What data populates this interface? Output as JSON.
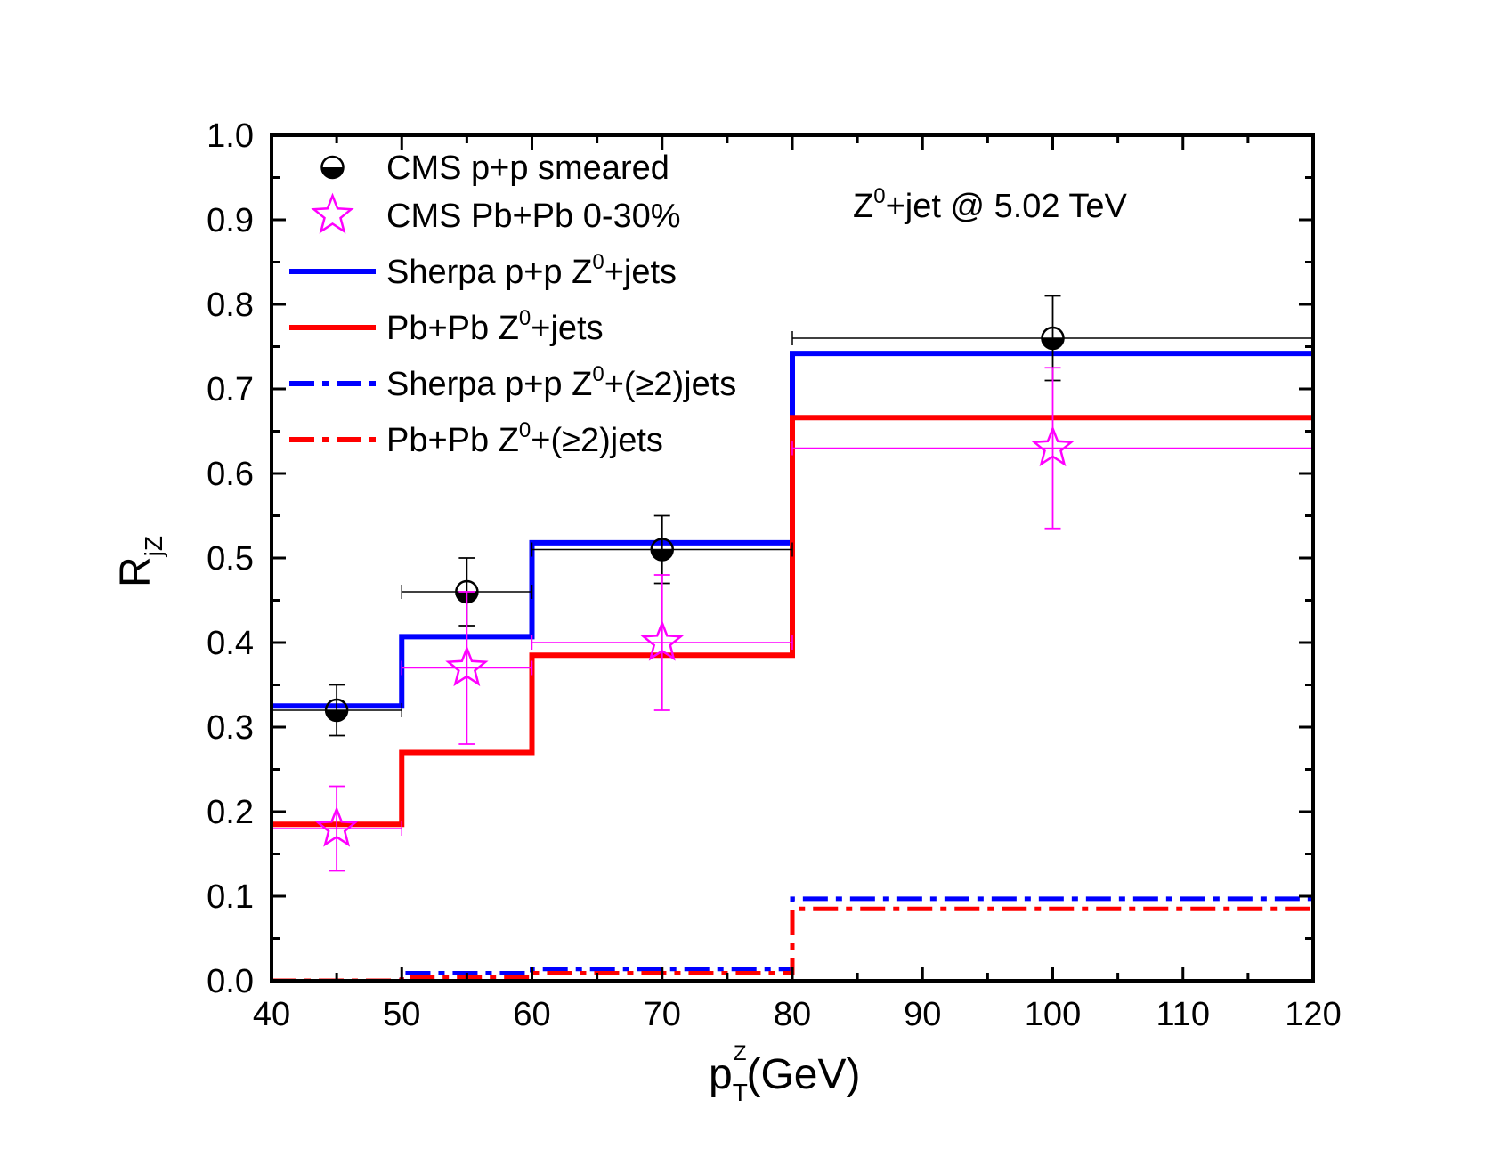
{
  "chart_data": {
    "type": "line",
    "xlim": [
      40,
      120
    ],
    "ylim": [
      0.0,
      1.0
    ],
    "xticks": [
      40,
      50,
      60,
      70,
      80,
      90,
      100,
      110,
      120
    ],
    "xtick_labels": [
      "40",
      "50",
      "60",
      "70",
      "80",
      "90",
      "100",
      "110",
      "120"
    ],
    "yticks": [
      0.0,
      0.1,
      0.2,
      0.3,
      0.4,
      0.5,
      0.6,
      0.7,
      0.8,
      0.9,
      1.0
    ],
    "ytick_labels": [
      "0.0",
      "0.1",
      "0.2",
      "0.3",
      "0.4",
      "0.5",
      "0.6",
      "0.7",
      "0.8",
      "0.9",
      "1.0"
    ],
    "xlabel": {
      "base": "p",
      "sub": "T",
      "sup": "Z",
      "suffix": "(GeV)"
    },
    "ylabel": {
      "base": "R",
      "sub": "jZ"
    },
    "annotation": {
      "prefix": "Z",
      "sup": "0",
      "suffix": "+jet @ 5.02 TeV"
    },
    "series": [
      {
        "name": "CMS p+p smeared",
        "kind": "points",
        "marker": "half-filled-circle",
        "color": "#000000",
        "points": [
          {
            "x": 45,
            "y": 0.32,
            "yerr": [
              0.29,
              0.35
            ],
            "xerr": [
              40,
              50
            ]
          },
          {
            "x": 55,
            "y": 0.46,
            "yerr": [
              0.42,
              0.5
            ],
            "xerr": [
              50,
              60
            ]
          },
          {
            "x": 70,
            "y": 0.51,
            "yerr": [
              0.47,
              0.55
            ],
            "xerr": [
              60,
              80
            ]
          },
          {
            "x": 100,
            "y": 0.76,
            "yerr": [
              0.71,
              0.81
            ],
            "xerr": [
              80,
              120
            ]
          }
        ]
      },
      {
        "name": "CMS Pb+Pb 0-30%",
        "kind": "points",
        "marker": "open-star",
        "color": "#ff00ff",
        "points": [
          {
            "x": 45,
            "y": 0.18,
            "yerr": [
              0.13,
              0.23
            ],
            "xerr": [
              40,
              50
            ]
          },
          {
            "x": 55,
            "y": 0.37,
            "yerr": [
              0.28,
              0.46
            ],
            "xerr": [
              50,
              60
            ]
          },
          {
            "x": 70,
            "y": 0.4,
            "yerr": [
              0.32,
              0.48
            ],
            "xerr": [
              60,
              80
            ]
          },
          {
            "x": 100,
            "y": 0.63,
            "yerr": [
              0.535,
              0.725
            ],
            "xerr": [
              80,
              120
            ]
          }
        ]
      },
      {
        "name": "Sherpa p+p Z0+jets",
        "kind": "step",
        "color": "#0000ff",
        "dash": "solid",
        "bins": [
          40,
          50,
          60,
          80,
          120
        ],
        "values": [
          0.325,
          0.407,
          0.518,
          0.742
        ]
      },
      {
        "name": "Pb+Pb Z0+jets",
        "kind": "step",
        "color": "#ff0000",
        "dash": "solid",
        "bins": [
          40,
          50,
          60,
          80,
          120
        ],
        "values": [
          0.185,
          0.27,
          0.385,
          0.666
        ]
      },
      {
        "name": "Sherpa p+p Z0+(>=2)jets",
        "kind": "step",
        "color": "#0000ff",
        "dash": "dashdot",
        "bins": [
          40,
          50,
          60,
          80,
          120
        ],
        "values": [
          0.0,
          0.009,
          0.014,
          0.097
        ]
      },
      {
        "name": "Pb+Pb Z0+(>=2)jets",
        "kind": "step",
        "color": "#ff0000",
        "dash": "dashdot",
        "bins": [
          40,
          50,
          60,
          80,
          120
        ],
        "values": [
          0.0,
          0.004,
          0.009,
          0.085
        ]
      }
    ],
    "legend": {
      "placement": "top-left",
      "entries": [
        {
          "series": 0,
          "parts": [
            {
              "t": "CMS p+p smeared"
            }
          ]
        },
        {
          "series": 1,
          "parts": [
            {
              "t": "CMS Pb+Pb 0-30%"
            }
          ]
        },
        {
          "series": 2,
          "parts": [
            {
              "t": "Sherpa  p+p  Z"
            },
            {
              "t": "0",
              "sup": true
            },
            {
              "t": "+jets"
            }
          ]
        },
        {
          "series": 3,
          "parts": [
            {
              "t": "Pb+Pb   Z"
            },
            {
              "t": "0",
              "sup": true
            },
            {
              "t": "+jets"
            }
          ]
        },
        {
          "series": 4,
          "parts": [
            {
              "t": "Sherpa  p+p Z"
            },
            {
              "t": "0",
              "sup": true
            },
            {
              "t": "+(≥2)jets"
            }
          ]
        },
        {
          "series": 5,
          "parts": [
            {
              "t": "Pb+Pb   Z"
            },
            {
              "t": "0",
              "sup": true
            },
            {
              "t": "+(≥2)jets"
            }
          ]
        }
      ]
    }
  }
}
